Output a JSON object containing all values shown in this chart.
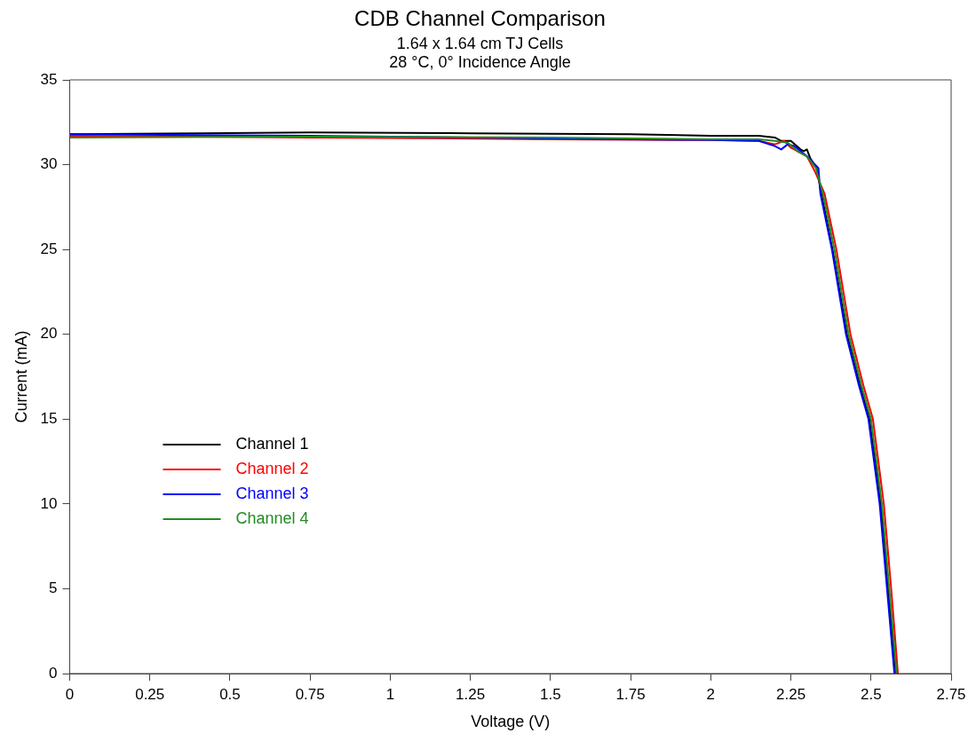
{
  "chart_data": {
    "type": "line",
    "title": "CDB Channel Comparison",
    "subtitle": "1.64 x 1.64 cm TJ Cells\n28 °C, 0° Incidence Angle",
    "xlabel": "Voltage (V)",
    "ylabel": "Current (mA)",
    "xlim": [
      0,
      2.75
    ],
    "xticks": [
      0,
      0.25,
      0.5,
      0.75,
      1,
      1.25,
      1.5,
      1.75,
      2,
      2.25,
      2.5,
      2.75
    ],
    "ylim": [
      0,
      35
    ],
    "yticks": [
      0,
      5,
      10,
      15,
      20,
      25,
      30,
      35
    ],
    "grid": false,
    "legend": "bottom left",
    "marker": "none",
    "line_style": "solid",
    "series": [
      {
        "name": "Channel 1",
        "color": "#000000",
        "x": [
          0,
          0.75,
          1.25,
          1.75,
          2,
          2.15,
          2.2,
          2.22,
          2.25,
          2.28,
          2.29,
          2.3,
          2.31,
          2.33,
          2.345,
          2.38,
          2.425,
          2.465,
          2.495,
          2.53,
          2.553,
          2.576
        ],
        "values": [
          31.8,
          31.9,
          31.85,
          31.8,
          31.7,
          31.7,
          31.6,
          31.4,
          31.4,
          30.9,
          30.8,
          30.9,
          30.4,
          29.8,
          28.3,
          25,
          20,
          17,
          15,
          10,
          5,
          0
        ]
      },
      {
        "name": "Channel 2",
        "color": "#ff0000",
        "x": [
          0,
          0.75,
          1.5,
          2,
          2.15,
          2.2,
          2.23,
          2.25,
          2.3,
          2.325,
          2.355,
          2.392,
          2.436,
          2.476,
          2.506,
          2.54,
          2.563,
          2.584
        ],
        "values": [
          31.7,
          31.6,
          31.5,
          31.45,
          31.4,
          31.2,
          31.4,
          31,
          30.5,
          29.6,
          28.3,
          25,
          20,
          17,
          15,
          10,
          5,
          0
        ]
      },
      {
        "name": "Channel 3",
        "color": "#0000ff",
        "x": [
          0,
          0.75,
          1.5,
          2,
          2.15,
          2.2,
          2.22,
          2.24,
          2.26,
          2.28,
          2.3,
          2.336,
          2.342,
          2.378,
          2.422,
          2.462,
          2.492,
          2.527,
          2.55,
          2.573
        ],
        "values": [
          31.8,
          31.7,
          31.55,
          31.45,
          31.4,
          31.1,
          30.9,
          31.2,
          31.1,
          30.8,
          30.5,
          29.8,
          28.3,
          25,
          20,
          17,
          15,
          10,
          5,
          0
        ]
      },
      {
        "name": "Channel 4",
        "color": "#228b22",
        "x": [
          0,
          0.75,
          1.5,
          2,
          2.15,
          2.2,
          2.24,
          2.27,
          2.3,
          2.328,
          2.35,
          2.386,
          2.43,
          2.47,
          2.5,
          2.534,
          2.557,
          2.58
        ],
        "values": [
          31.6,
          31.65,
          31.6,
          31.5,
          31.5,
          31.4,
          31.3,
          30.8,
          30.5,
          29.8,
          28.3,
          25,
          20,
          17,
          15,
          10,
          5,
          0
        ]
      }
    ]
  }
}
